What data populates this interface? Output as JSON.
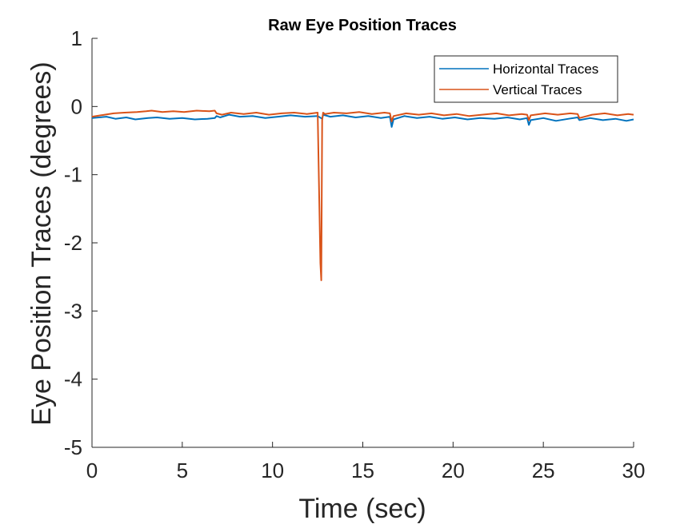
{
  "chart_data": {
    "type": "line",
    "title": "Raw Eye Position Traces",
    "xlabel": "Time (sec)",
    "ylabel": "Eye Position Traces (degrees)",
    "xlim": [
      0,
      30
    ],
    "ylim": [
      -5,
      1
    ],
    "xticks": [
      0,
      5,
      10,
      15,
      20,
      25,
      30
    ],
    "yticks": [
      -5,
      -4,
      -3,
      -2,
      -1,
      0,
      1
    ],
    "grid": false,
    "legend_position": "top-right",
    "series": [
      {
        "name": "Horizontal Traces",
        "color": "#0072BD",
        "x": [
          0,
          0.8,
          1.3,
          1.9,
          2.4,
          3.1,
          3.6,
          4.3,
          5.0,
          5.7,
          6.4,
          6.8,
          6.9,
          7.1,
          7.6,
          8.2,
          8.9,
          9.6,
          10.3,
          11.0,
          11.8,
          12.5,
          12.75,
          12.8,
          13.2,
          13.9,
          14.6,
          15.3,
          16.0,
          16.5,
          16.6,
          16.7,
          17.3,
          18.0,
          18.7,
          19.4,
          20.1,
          20.8,
          21.5,
          22.3,
          23.0,
          23.7,
          24.1,
          24.2,
          24.3,
          25.0,
          25.7,
          26.4,
          26.9,
          27.0,
          27.6,
          28.3,
          29.0,
          29.6,
          30.0
        ],
        "y": [
          -0.17,
          -0.15,
          -0.18,
          -0.16,
          -0.19,
          -0.17,
          -0.16,
          -0.18,
          -0.17,
          -0.19,
          -0.18,
          -0.17,
          -0.14,
          -0.16,
          -0.12,
          -0.15,
          -0.14,
          -0.17,
          -0.15,
          -0.13,
          -0.15,
          -0.14,
          -0.18,
          -0.12,
          -0.15,
          -0.13,
          -0.16,
          -0.14,
          -0.17,
          -0.15,
          -0.3,
          -0.19,
          -0.14,
          -0.17,
          -0.15,
          -0.18,
          -0.16,
          -0.19,
          -0.17,
          -0.18,
          -0.16,
          -0.19,
          -0.17,
          -0.27,
          -0.2,
          -0.17,
          -0.21,
          -0.18,
          -0.16,
          -0.2,
          -0.17,
          -0.2,
          -0.18,
          -0.21,
          -0.19
        ]
      },
      {
        "name": "Vertical Traces",
        "color": "#D95319",
        "x": [
          0,
          0.7,
          1.2,
          1.8,
          2.5,
          3.0,
          3.3,
          3.9,
          4.5,
          5.1,
          5.8,
          6.5,
          6.8,
          6.9,
          7.2,
          7.7,
          8.4,
          9.1,
          9.8,
          10.5,
          11.2,
          11.9,
          12.5,
          12.65,
          12.7,
          12.75,
          12.8,
          12.9,
          13.4,
          14.1,
          14.8,
          15.5,
          16.2,
          16.5,
          16.6,
          16.7,
          17.4,
          18.1,
          18.8,
          19.5,
          20.2,
          20.9,
          21.6,
          22.4,
          23.1,
          23.8,
          24.1,
          24.2,
          24.3,
          25.1,
          25.8,
          26.5,
          26.9,
          27.0,
          27.7,
          28.4,
          29.1,
          29.7,
          30.0
        ],
        "y": [
          -0.15,
          -0.12,
          -0.1,
          -0.09,
          -0.08,
          -0.07,
          -0.06,
          -0.08,
          -0.07,
          -0.08,
          -0.06,
          -0.07,
          -0.06,
          -0.1,
          -0.12,
          -0.09,
          -0.11,
          -0.09,
          -0.12,
          -0.1,
          -0.09,
          -0.11,
          -0.09,
          -2.3,
          -2.55,
          -0.2,
          -0.09,
          -0.11,
          -0.09,
          -0.1,
          -0.08,
          -0.11,
          -0.09,
          -0.1,
          -0.22,
          -0.14,
          -0.1,
          -0.12,
          -0.1,
          -0.13,
          -0.11,
          -0.14,
          -0.12,
          -0.1,
          -0.13,
          -0.11,
          -0.12,
          -0.2,
          -0.13,
          -0.1,
          -0.12,
          -0.1,
          -0.11,
          -0.17,
          -0.12,
          -0.1,
          -0.13,
          -0.11,
          -0.12
        ]
      }
    ]
  }
}
